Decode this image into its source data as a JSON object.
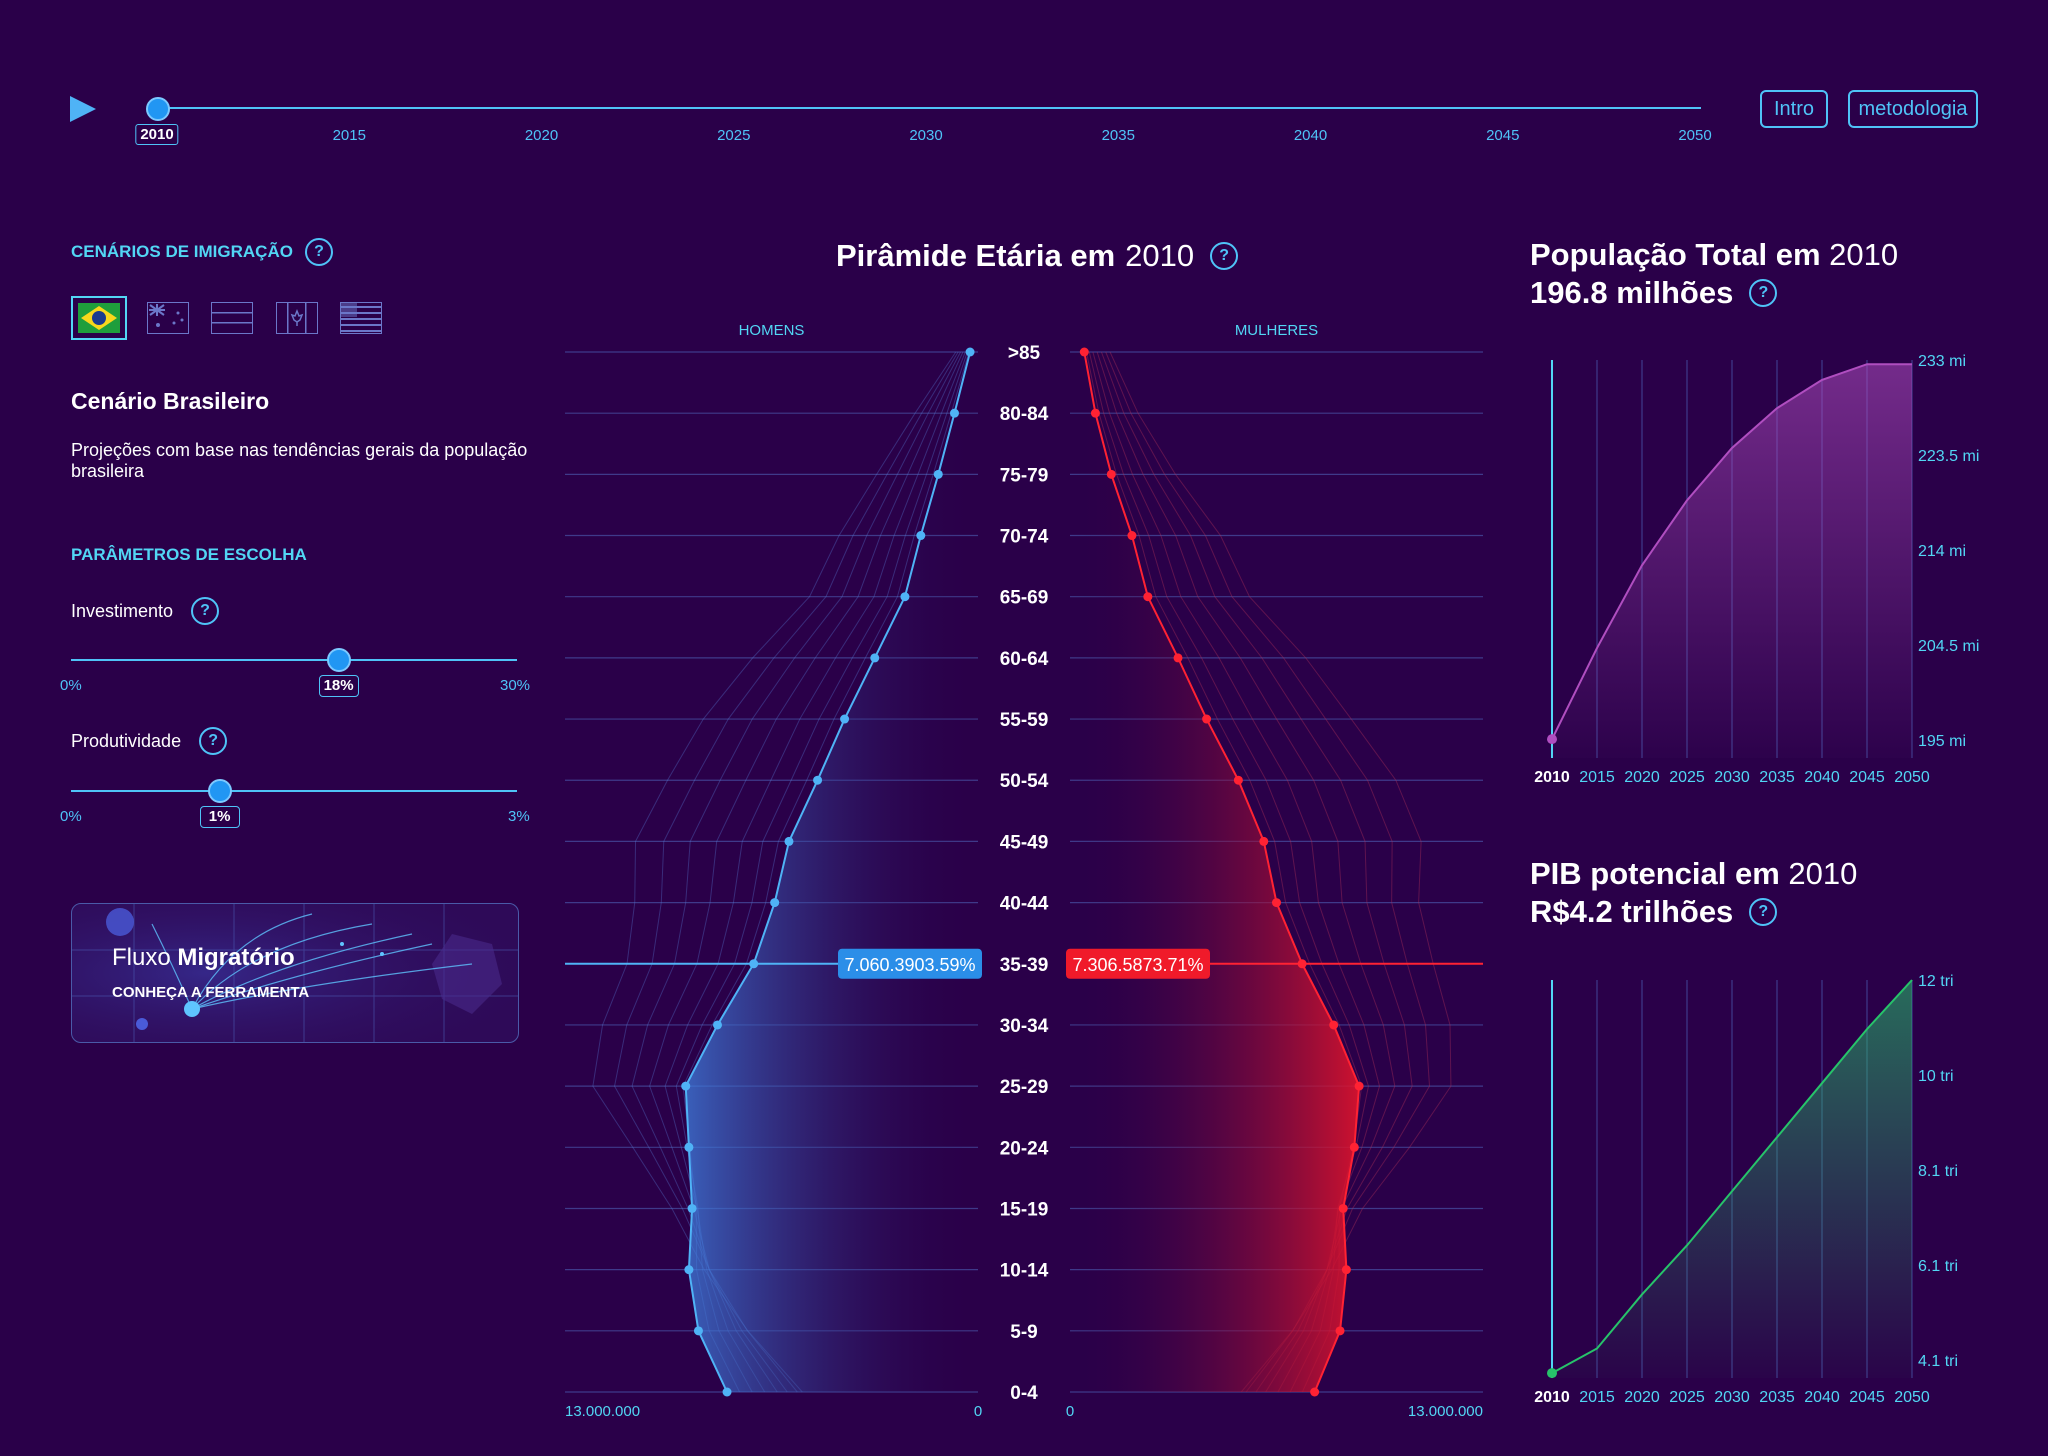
{
  "timeline": {
    "years": [
      "2010",
      "2015",
      "2020",
      "2025",
      "2030",
      "2035",
      "2040",
      "2045",
      "2050"
    ],
    "selected": "2010"
  },
  "nav": {
    "intro": "Intro",
    "metodologia": "metodologia"
  },
  "left": {
    "cenarios_title": "CENÁRIOS DE IMIGRAÇÃO",
    "flags": [
      "brazil-flag-icon",
      "australia-flag-icon",
      "stripes-flag-icon",
      "canada-flag-icon",
      "usa-flag-icon"
    ],
    "scenario_title": "Cenário Brasileiro",
    "scenario_desc": "Projeções com base nas tendências gerais da população brasileira",
    "params_title": "PARÂMETROS DE ESCOLHA",
    "invest": {
      "label": "Investimento",
      "min": "0%",
      "max": "30%",
      "value": "18%",
      "fraction": 0.6
    },
    "prod": {
      "label": "Produtividade",
      "min": "0%",
      "max": "3%",
      "value": "1%",
      "fraction": 0.3333
    },
    "fluxo": {
      "word1": "Fluxo",
      "word2": "Migratório",
      "sub": "CONHEÇA A FERRAMENTA"
    }
  },
  "pyramid": {
    "title_bold": "Pirâmide Etária em",
    "title_year": "2010",
    "men_label": "HOMENS",
    "women_label": "MULHERES",
    "axis_left_max": "13.000.000",
    "axis_left_zero": "0",
    "axis_right_zero": "0",
    "axis_right_max": "13.000.000",
    "highlight_index": 7,
    "men_tooltip": "7.060.3903.59%",
    "women_tooltip": "7.306.5873.71%",
    "colors": {
      "men": "#4fb3f6",
      "women": "#ff2233"
    }
  },
  "pop": {
    "title_bold": "População Total em",
    "year": "2010",
    "value": "196.8 milhões",
    "color": "#b04ec0"
  },
  "pib": {
    "title_bold": "PIB potencial em",
    "year": "2010",
    "value": "R$4.2 trilhões",
    "color": "#27c36a"
  },
  "chart_data": [
    {
      "type": "bar",
      "title": "Pirâmide Etária em 2010",
      "categories": [
        "0-4",
        "5-9",
        "10-14",
        "15-19",
        "20-24",
        "25-29",
        "30-34",
        "35-39",
        "40-44",
        "45-49",
        "50-54",
        "55-59",
        "60-64",
        "65-69",
        "70-74",
        "75-79",
        "80-84",
        ">85"
      ],
      "series": [
        {
          "name": "HOMENS",
          "values": [
            7900000,
            8800000,
            9100000,
            9000000,
            9100000,
            9200000,
            8200000,
            7060390,
            6400000,
            5950000,
            5050000,
            4200000,
            3250000,
            2300000,
            1800000,
            1250000,
            740000,
            250000
          ]
        },
        {
          "name": "MULHERES",
          "values": [
            7700000,
            8500000,
            8700000,
            8600000,
            8950000,
            9100000,
            8300000,
            7306587,
            6500000,
            6100000,
            5300000,
            4300000,
            3400000,
            2450000,
            1950000,
            1300000,
            800000,
            450000
          ]
        }
      ],
      "xlim": [
        0,
        13000000
      ]
    },
    {
      "type": "area",
      "title": "População Total em 2010",
      "x": [
        "2010",
        "2015",
        "2020",
        "2025",
        "2030",
        "2035",
        "2040",
        "2045",
        "2050"
      ],
      "values": [
        196.8,
        205.5,
        213.4,
        219.6,
        224.6,
        228.4,
        231.1,
        232.6,
        232.6
      ],
      "yticks": [
        "195 mi",
        "204.5 mi",
        "214 mi",
        "223.5 mi",
        "233 mi"
      ],
      "ylim": [
        195,
        233
      ]
    },
    {
      "type": "area",
      "title": "PIB potencial em 2010",
      "x": [
        "2010",
        "2015",
        "2020",
        "2025",
        "2030",
        "2035",
        "2040",
        "2045",
        "2050"
      ],
      "values": [
        4.2,
        4.7,
        5.8,
        6.8,
        7.9,
        9.0,
        10.1,
        11.2,
        12.2
      ],
      "yticks": [
        "4.1 tri",
        "6.1 tri",
        "8.1 tri",
        "10 tri",
        "12 tri"
      ],
      "ylim": [
        4.1,
        12.2
      ]
    }
  ]
}
